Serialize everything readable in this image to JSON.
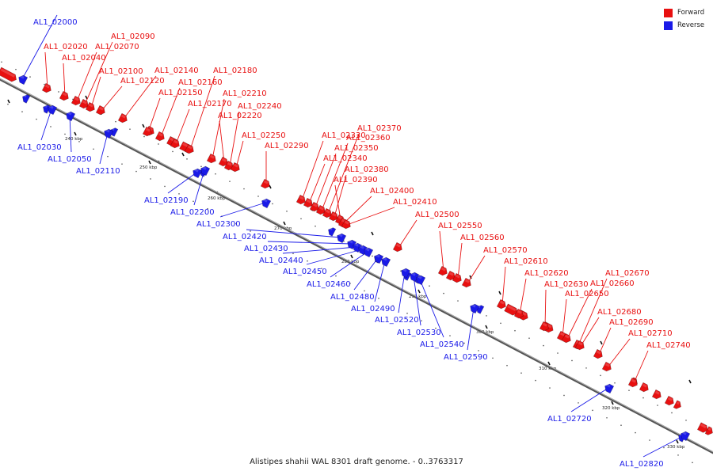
{
  "legend": {
    "forward_label": "Forward",
    "reverse_label": "Reverse",
    "forward_color": "#e81010",
    "reverse_color": "#1a1ae8"
  },
  "caption": "Alistipes shahii WAL 8301 draft genome. - 0..3763317",
  "colors": {
    "axis": "#555555",
    "leader_forward": "#e81010",
    "leader_reverse": "#1a1ae8"
  },
  "scale": {
    "ticks": [
      "240 kbp",
      "250 kbp",
      "260 kbp",
      "270 kbp",
      "280 kbp",
      "290 kbp",
      "300 kbp",
      "310 kbp",
      "320 kbp",
      "330 kbp"
    ]
  },
  "genes": [
    {
      "id": "AL1_02000",
      "strand": "reverse"
    },
    {
      "id": "AL1_02020",
      "strand": "forward"
    },
    {
      "id": "AL1_02030",
      "strand": "reverse"
    },
    {
      "id": "AL1_02040",
      "strand": "forward"
    },
    {
      "id": "AL1_02050",
      "strand": "reverse"
    },
    {
      "id": "AL1_02070",
      "strand": "forward"
    },
    {
      "id": "AL1_02090",
      "strand": "forward"
    },
    {
      "id": "AL1_02100",
      "strand": "forward"
    },
    {
      "id": "AL1_02110",
      "strand": "reverse"
    },
    {
      "id": "AL1_02120",
      "strand": "forward"
    },
    {
      "id": "AL1_02140",
      "strand": "forward"
    },
    {
      "id": "AL1_02150",
      "strand": "forward"
    },
    {
      "id": "AL1_02160",
      "strand": "forward"
    },
    {
      "id": "AL1_02170",
      "strand": "forward"
    },
    {
      "id": "AL1_02180",
      "strand": "forward"
    },
    {
      "id": "AL1_02190",
      "strand": "reverse"
    },
    {
      "id": "AL1_02200",
      "strand": "reverse"
    },
    {
      "id": "AL1_02210",
      "strand": "forward"
    },
    {
      "id": "AL1_02220",
      "strand": "forward"
    },
    {
      "id": "AL1_02240",
      "strand": "forward"
    },
    {
      "id": "AL1_02250",
      "strand": "forward"
    },
    {
      "id": "AL1_02290",
      "strand": "forward"
    },
    {
      "id": "AL1_02300",
      "strand": "reverse"
    },
    {
      "id": "AL1_02330",
      "strand": "forward"
    },
    {
      "id": "AL1_02340",
      "strand": "forward"
    },
    {
      "id": "AL1_02350",
      "strand": "forward"
    },
    {
      "id": "AL1_02360",
      "strand": "forward"
    },
    {
      "id": "AL1_02370",
      "strand": "forward"
    },
    {
      "id": "AL1_02380",
      "strand": "forward"
    },
    {
      "id": "AL1_02390",
      "strand": "forward"
    },
    {
      "id": "AL1_02400",
      "strand": "forward"
    },
    {
      "id": "AL1_02410",
      "strand": "forward"
    },
    {
      "id": "AL1_02420",
      "strand": "reverse"
    },
    {
      "id": "AL1_02430",
      "strand": "reverse"
    },
    {
      "id": "AL1_02440",
      "strand": "reverse"
    },
    {
      "id": "AL1_02450",
      "strand": "reverse"
    },
    {
      "id": "AL1_02460",
      "strand": "reverse"
    },
    {
      "id": "AL1_02480",
      "strand": "reverse"
    },
    {
      "id": "AL1_02490",
      "strand": "reverse"
    },
    {
      "id": "AL1_02500",
      "strand": "forward"
    },
    {
      "id": "AL1_02520",
      "strand": "reverse"
    },
    {
      "id": "AL1_02530",
      "strand": "reverse"
    },
    {
      "id": "AL1_02540",
      "strand": "reverse"
    },
    {
      "id": "AL1_02550",
      "strand": "forward"
    },
    {
      "id": "AL1_02560",
      "strand": "forward"
    },
    {
      "id": "AL1_02570",
      "strand": "forward"
    },
    {
      "id": "AL1_02590",
      "strand": "reverse"
    },
    {
      "id": "AL1_02610",
      "strand": "forward"
    },
    {
      "id": "AL1_02620",
      "strand": "forward"
    },
    {
      "id": "AL1_02630",
      "strand": "forward"
    },
    {
      "id": "AL1_02650",
      "strand": "forward"
    },
    {
      "id": "AL1_02660",
      "strand": "forward"
    },
    {
      "id": "AL1_02670",
      "strand": "forward"
    },
    {
      "id": "AL1_02680",
      "strand": "forward"
    },
    {
      "id": "AL1_02690",
      "strand": "forward"
    },
    {
      "id": "AL1_02710",
      "strand": "forward"
    },
    {
      "id": "AL1_02720",
      "strand": "reverse"
    },
    {
      "id": "AL1_02740",
      "strand": "forward"
    },
    {
      "id": "AL1_02820",
      "strand": "reverse"
    }
  ]
}
